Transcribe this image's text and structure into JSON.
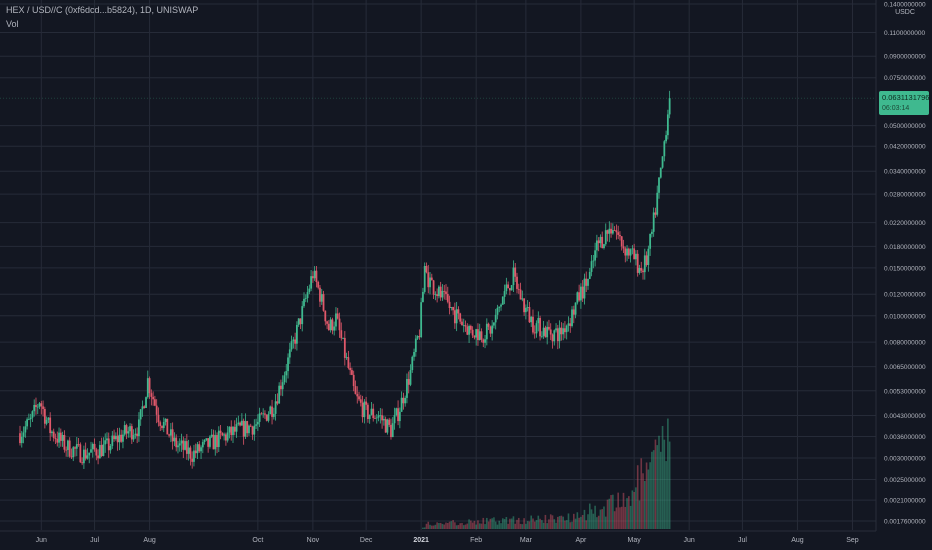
{
  "header": {
    "symbol_line": "HEX / USD//C (0xf6dcd...b5824), 1D, UNISWAP",
    "volume_label": "Vol"
  },
  "price_axis": {
    "unit": "USDC",
    "labels": [
      "0.1400000000",
      "0.1100000000",
      "0.0900000000",
      "0.0750000000",
      "0.0500000000",
      "0.0420000000",
      "0.0340000000",
      "0.0280000000",
      "0.0220000000",
      "0.0180000000",
      "0.0150000000",
      "0.0120000000",
      "0.0100000000",
      "0.0080000000",
      "0.0065000000",
      "0.0053000000",
      "0.0043000000",
      "0.0036000000",
      "0.0030000000",
      "0.0025000000",
      "0.0021000000",
      "0.0017600000"
    ]
  },
  "last_price": {
    "value": "0.0631131796",
    "countdown": "06:03:14"
  },
  "time_axis": {
    "labels": [
      "Jun",
      "Jul",
      "Aug",
      "Oct",
      "Nov",
      "Dec",
      "2021",
      "Feb",
      "Mar",
      "Apr",
      "May",
      "Jun",
      "Jul",
      "Aug",
      "Sep"
    ],
    "bold_label": "2021"
  },
  "colors": {
    "background": "#131722",
    "grid": "#262b38",
    "up": "#3fb98f",
    "down": "#e0586a",
    "axis_text": "#b2b5be"
  },
  "chart_data": {
    "type": "candlestick",
    "title": "HEX / USD//C (0xf6dcd...b5824), 1D, UNISWAP",
    "y_scale": "log",
    "ylim": [
      0.00176,
      0.14
    ],
    "y_unit": "USDC",
    "x_start": "2020-05-20",
    "x_end": "2021-09-12",
    "price_anchors": [
      [
        "2020-05-20",
        0.0037
      ],
      [
        "2020-05-26",
        0.0041
      ],
      [
        "2020-05-31",
        0.0049
      ],
      [
        "2020-06-06",
        0.0038
      ],
      [
        "2020-06-15",
        0.0033
      ],
      [
        "2020-06-25",
        0.0031
      ],
      [
        "2020-07-08",
        0.0033
      ],
      [
        "2020-07-18",
        0.0037
      ],
      [
        "2020-07-26",
        0.0039
      ],
      [
        "2020-07-31",
        0.0058
      ],
      [
        "2020-08-06",
        0.0043
      ],
      [
        "2020-08-15",
        0.0034
      ],
      [
        "2020-08-25",
        0.0031
      ],
      [
        "2020-09-08",
        0.0035
      ],
      [
        "2020-09-20",
        0.0038
      ],
      [
        "2020-10-01",
        0.004
      ],
      [
        "2020-10-10",
        0.0047
      ],
      [
        "2020-10-20",
        0.0075
      ],
      [
        "2020-10-28",
        0.0115
      ],
      [
        "2020-11-01",
        0.0143
      ],
      [
        "2020-11-05",
        0.012
      ],
      [
        "2020-11-10",
        0.009
      ],
      [
        "2020-11-14",
        0.0098
      ],
      [
        "2020-11-20",
        0.0068
      ],
      [
        "2020-11-25",
        0.005
      ],
      [
        "2020-12-01",
        0.0044
      ],
      [
        "2020-12-08",
        0.0043
      ],
      [
        "2020-12-15",
        0.0038
      ],
      [
        "2020-12-20",
        0.0046
      ],
      [
        "2020-12-26",
        0.0062
      ],
      [
        "2020-12-31",
        0.0088
      ],
      [
        "2021-01-03",
        0.0145
      ],
      [
        "2021-01-08",
        0.0128
      ],
      [
        "2021-01-15",
        0.0112
      ],
      [
        "2021-01-22",
        0.0098
      ],
      [
        "2021-01-29",
        0.0088
      ],
      [
        "2021-02-05",
        0.0086
      ],
      [
        "2021-02-10",
        0.009
      ],
      [
        "2021-02-17",
        0.0122
      ],
      [
        "2021-02-22",
        0.014
      ],
      [
        "2021-02-28",
        0.0108
      ],
      [
        "2021-03-05",
        0.0094
      ],
      [
        "2021-03-12",
        0.0088
      ],
      [
        "2021-03-20",
        0.0086
      ],
      [
        "2021-03-26",
        0.0098
      ],
      [
        "2021-03-31",
        0.0118
      ],
      [
        "2021-04-06",
        0.014
      ],
      [
        "2021-04-10",
        0.018
      ],
      [
        "2021-04-15",
        0.02
      ],
      [
        "2021-04-19",
        0.0215
      ],
      [
        "2021-04-25",
        0.018
      ],
      [
        "2021-04-30",
        0.0166
      ],
      [
        "2021-05-05",
        0.0148
      ],
      [
        "2021-05-08",
        0.016
      ],
      [
        "2021-05-11",
        0.02
      ],
      [
        "2021-05-14",
        0.0275
      ],
      [
        "2021-05-17",
        0.038
      ],
      [
        "2021-05-19",
        0.05
      ],
      [
        "2021-05-21",
        0.0631
      ]
    ],
    "volume_anchors": [
      [
        "2020-05-20",
        0.0
      ],
      [
        "2021-01-01",
        0.0
      ],
      [
        "2021-01-05",
        0.06
      ],
      [
        "2021-02-20",
        0.1
      ],
      [
        "2021-03-20",
        0.12
      ],
      [
        "2021-04-10",
        0.22
      ],
      [
        "2021-04-25",
        0.3
      ],
      [
        "2021-05-05",
        0.55
      ],
      [
        "2021-05-12",
        0.7
      ],
      [
        "2021-05-21",
        1.0
      ]
    ]
  }
}
